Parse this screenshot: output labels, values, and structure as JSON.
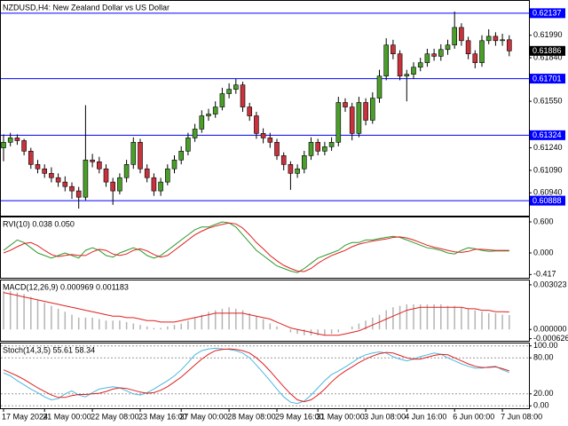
{
  "chart_data": [
    {
      "type": "candlestick",
      "title": "NZDUSD,H4:  New Zealand Dollar vs US Dollar",
      "categories": [
        "17 May 2024",
        null,
        null,
        null,
        null,
        null,
        "21 May 00:00",
        null,
        null,
        null,
        null,
        null,
        null,
        "22 May 08:00",
        null,
        null,
        null,
        null,
        null,
        null,
        "23 May 16:00",
        null,
        null,
        null,
        null,
        null,
        "27 May 00:00",
        null,
        null,
        null,
        null,
        null,
        null,
        "28 May 08:00",
        null,
        null,
        null,
        null,
        null,
        null,
        "29 May 16:00",
        null,
        null,
        null,
        null,
        null,
        "31 May 00:00",
        null,
        null,
        null,
        null,
        null,
        null,
        "3 Jun 08:00",
        null,
        null,
        null,
        null,
        null,
        "4 Jun 16:00",
        null,
        null,
        null,
        null,
        null,
        null,
        "6 Jun 00:00",
        null,
        null,
        null,
        null,
        null,
        null,
        "7 Jun 08:00",
        null
      ],
      "open": [
        0.6124,
        0.61277,
        0.61306,
        0.61288,
        0.61218,
        0.61129,
        0.611,
        0.6107,
        0.61041,
        0.61012,
        0.60982,
        0.60953,
        0.60911,
        0.61159,
        0.61147,
        0.611,
        0.61012,
        0.60953,
        0.61041,
        0.61129,
        0.61277,
        0.611,
        0.61041,
        0.60953,
        0.61012,
        0.611,
        0.61159,
        0.61218,
        0.61306,
        0.61365,
        0.61453,
        0.61465,
        0.61512,
        0.61601,
        0.6163,
        0.61659,
        0.61512,
        0.61453,
        0.61336,
        0.61306,
        0.61277,
        0.61188,
        0.61129,
        0.6107,
        0.611,
        0.61188,
        0.61277,
        0.61218,
        0.61247,
        0.61277,
        0.61542,
        0.61512,
        0.61336,
        0.61542,
        0.61424,
        0.61571,
        0.61718,
        0.61925,
        0.61866,
        0.61718,
        0.6173,
        0.61777,
        0.61807,
        0.61866,
        0.6185,
        0.61895,
        0.61925,
        0.62042,
        0.61954,
        0.61866,
        0.61807,
        0.61954,
        0.61983,
        0.61954,
        0.6196
      ],
      "high": [
        0.6133,
        0.6134,
        0.6133,
        0.613,
        0.6124,
        0.6116,
        0.6113,
        0.6111,
        0.6107,
        0.6105,
        0.6101,
        0.6098,
        0.61524,
        0.612,
        0.6118,
        0.6113,
        0.6104,
        0.6107,
        0.6116,
        0.6131,
        0.613,
        0.6113,
        0.6107,
        0.6104,
        0.6113,
        0.6119,
        0.6125,
        0.6134,
        0.614,
        0.6149,
        0.615,
        0.6155,
        0.6164,
        0.6167,
        0.617,
        0.6168,
        0.6154,
        0.6148,
        0.6137,
        0.6134,
        0.613,
        0.6121,
        0.6115,
        0.6113,
        0.6122,
        0.6131,
        0.613,
        0.6128,
        0.6131,
        0.6158,
        0.6157,
        0.6154,
        0.6158,
        0.6157,
        0.6161,
        0.6176,
        0.6197,
        0.6196,
        0.6189,
        0.6176,
        0.6181,
        0.6184,
        0.619,
        0.619,
        0.6193,
        0.6196,
        0.62148,
        0.6207,
        0.6198,
        0.6189,
        0.6199,
        0.6203,
        0.6201,
        0.62,
        0.6199
      ],
      "low": [
        0.6115,
        0.6125,
        0.6126,
        0.6119,
        0.611,
        0.6107,
        0.6104,
        0.6101,
        0.6098,
        0.6095,
        0.609,
        0.60835,
        0.6089,
        0.6111,
        0.6107,
        0.6098,
        0.6086,
        0.6093,
        0.6101,
        0.611,
        0.6107,
        0.6101,
        0.6092,
        0.6092,
        0.6099,
        0.6107,
        0.6113,
        0.6119,
        0.6128,
        0.6134,
        0.6142,
        0.6144,
        0.6149,
        0.6157,
        0.616,
        0.6148,
        0.6142,
        0.613,
        0.6127,
        0.6124,
        0.6116,
        0.6109,
        0.6096,
        0.6104,
        0.6107,
        0.6116,
        0.6119,
        0.6119,
        0.6122,
        0.6125,
        0.6148,
        0.6129,
        0.6131,
        0.6139,
        0.614,
        0.6154,
        0.6169,
        0.6183,
        0.6169,
        0.6155,
        0.617,
        0.6175,
        0.6178,
        0.6182,
        0.6182,
        0.6186,
        0.619,
        0.6192,
        0.6183,
        0.6177,
        0.6178,
        0.6193,
        0.6192,
        0.6192,
        0.6185
      ],
      "close": [
        0.61277,
        0.61306,
        0.61288,
        0.61218,
        0.61129,
        0.611,
        0.6107,
        0.61041,
        0.61012,
        0.60982,
        0.60953,
        0.60911,
        0.61159,
        0.61147,
        0.611,
        0.61012,
        0.60953,
        0.61041,
        0.61129,
        0.61277,
        0.611,
        0.61041,
        0.60953,
        0.61012,
        0.611,
        0.61159,
        0.61218,
        0.61306,
        0.61365,
        0.61453,
        0.61465,
        0.61512,
        0.61601,
        0.6163,
        0.61659,
        0.61512,
        0.61453,
        0.61336,
        0.61306,
        0.61277,
        0.61188,
        0.61129,
        0.6107,
        0.611,
        0.61188,
        0.61277,
        0.61218,
        0.61247,
        0.61277,
        0.61542,
        0.61512,
        0.61336,
        0.61542,
        0.61424,
        0.61571,
        0.61718,
        0.61925,
        0.61866,
        0.61718,
        0.6173,
        0.61777,
        0.61807,
        0.61866,
        0.6185,
        0.61895,
        0.61925,
        0.62042,
        0.61954,
        0.61866,
        0.61807,
        0.61954,
        0.61983,
        0.61954,
        0.6196,
        0.61886
      ],
      "up_color": "#4a9e2a",
      "down_color": "#c8323c",
      "ylim": [
        0.60788,
        0.62219
      ],
      "yticks": [
        {
          "value": 0.6199,
          "label": "0.61990"
        },
        {
          "value": 0.6184,
          "label": "0.61840"
        },
        {
          "value": 0.6155,
          "label": "0.61550"
        },
        {
          "value": 0.6124,
          "label": "0.61240"
        },
        {
          "value": 0.6109,
          "label": "0.61090"
        },
        {
          "value": 0.6094,
          "label": "0.60940"
        }
      ],
      "levels": [
        0.62137,
        0.61701,
        0.61324,
        0.60888
      ],
      "level_color": "#0000ff",
      "last_price": 0.61886
    },
    {
      "type": "line",
      "title": "RVI(10) 0.038 0.050",
      "series": [
        {
          "color": "#2e9a2e",
          "values": [
            0.05,
            0.15,
            0.25,
            0.2,
            0.1,
            0.0,
            -0.05,
            -0.1,
            -0.05,
            0.0,
            -0.05,
            -0.1,
            0.05,
            0.1,
            0.05,
            -0.05,
            -0.08,
            0.0,
            0.05,
            0.1,
            0.05,
            -0.05,
            -0.1,
            -0.05,
            0.05,
            0.15,
            0.25,
            0.35,
            0.45,
            0.5,
            0.5,
            0.55,
            0.6,
            0.58,
            0.5,
            0.35,
            0.2,
            0.05,
            -0.05,
            -0.15,
            -0.25,
            -0.3,
            -0.35,
            -0.38,
            -0.3,
            -0.2,
            -0.1,
            -0.05,
            0.0,
            0.05,
            0.15,
            0.2,
            0.2,
            0.25,
            0.25,
            0.28,
            0.3,
            0.32,
            0.3,
            0.25,
            0.2,
            0.15,
            0.1,
            0.08,
            0.05,
            0.0,
            -0.02,
            0.05,
            0.1,
            0.08,
            0.05,
            0.03,
            0.04,
            0.04,
            0.038
          ]
        },
        {
          "color": "#e02020",
          "values": [
            0.0,
            0.05,
            0.12,
            0.18,
            0.2,
            0.14,
            0.05,
            -0.03,
            -0.07,
            -0.05,
            -0.03,
            -0.05,
            -0.05,
            0.02,
            0.07,
            0.05,
            -0.02,
            -0.05,
            -0.02,
            0.05,
            0.08,
            0.04,
            -0.03,
            -0.08,
            -0.05,
            0.05,
            0.15,
            0.25,
            0.35,
            0.42,
            0.48,
            0.52,
            0.55,
            0.58,
            0.56,
            0.48,
            0.35,
            0.2,
            0.08,
            -0.05,
            -0.15,
            -0.24,
            -0.3,
            -0.35,
            -0.36,
            -0.3,
            -0.2,
            -0.12,
            -0.05,
            0.0,
            0.05,
            0.12,
            0.17,
            0.2,
            0.23,
            0.25,
            0.27,
            0.3,
            0.31,
            0.29,
            0.25,
            0.2,
            0.15,
            0.11,
            0.08,
            0.05,
            0.02,
            0.01,
            0.03,
            0.07,
            0.07,
            0.06,
            0.05,
            0.05,
            0.05
          ]
        }
      ],
      "ylim": [
        -0.48,
        0.686
      ],
      "yticks": [
        {
          "value": 0.6,
          "label": "0.600"
        },
        {
          "value": 0,
          "label": "0.000"
        },
        -0.417
      ]
    },
    {
      "type": "macd",
      "title": "MACD(12,26,9) 0.000969 0.001183",
      "histogram": {
        "color": "#b4b4b4",
        "values": [
          0.0026,
          0.0026,
          0.0025,
          0.0024,
          0.0022,
          0.002,
          0.0018,
          0.0016,
          0.0014,
          0.0012,
          0.001,
          0.0008,
          0.0008,
          0.0008,
          0.0007,
          0.0006,
          0.0006,
          0.0006,
          0.0005,
          0.0004,
          0.0003,
          0.0002,
          0.0001,
          0.0001,
          0.0002,
          0.0003,
          0.0004,
          0.0006,
          0.0008,
          0.001,
          0.0012,
          0.0013,
          0.0014,
          0.0015,
          0.0014,
          0.0013,
          0.0011,
          0.0009,
          0.0007,
          0.0004,
          0.0002,
          0.0,
          -0.0002,
          -0.0003,
          -0.0004,
          -0.0004,
          -0.0004,
          -0.0004,
          -0.0003,
          -0.0002,
          0.0,
          0.0002,
          0.0004,
          0.0006,
          0.0008,
          0.001,
          0.0013,
          0.0015,
          0.0016,
          0.0017,
          0.0017,
          0.0017,
          0.0017,
          0.0017,
          0.0017,
          0.0016,
          0.0016,
          0.0015,
          0.0014,
          0.0013,
          0.0012,
          0.0011,
          0.0011,
          0.001,
          0.000969
        ]
      },
      "signal": {
        "color": "#e02020",
        "values": [
          0.0025,
          0.0024,
          0.0023,
          0.0022,
          0.0021,
          0.002,
          0.0019,
          0.0018,
          0.0017,
          0.0016,
          0.0015,
          0.0014,
          0.0013,
          0.0012,
          0.0011,
          0.001,
          0.0009,
          0.0009,
          0.0008,
          0.0008,
          0.0007,
          0.0006,
          0.0006,
          0.0005,
          0.0005,
          0.0005,
          0.0006,
          0.0007,
          0.0008,
          0.0009,
          0.001,
          0.0011,
          0.0011,
          0.0011,
          0.0011,
          0.0011,
          0.001,
          0.0009,
          0.0008,
          0.0007,
          0.0005,
          0.0003,
          0.0001,
          0.0,
          -0.0001,
          -0.0002,
          -0.0003,
          -0.0004,
          -0.0004,
          -0.0004,
          -0.0003,
          -0.0002,
          -0.0001,
          0.0001,
          0.0003,
          0.0005,
          0.0007,
          0.0009,
          0.0011,
          0.0013,
          0.0014,
          0.0015,
          0.0015,
          0.0015,
          0.0015,
          0.0015,
          0.0015,
          0.0015,
          0.0014,
          0.0014,
          0.0013,
          0.0013,
          0.0012,
          0.0012,
          0.001183
        ]
      },
      "ylim": [
        -0.000771,
        0.003319
      ],
      "yticks": [
        0.003023,
        {
          "value": 0,
          "label": "0.000000"
        },
        -0.000626
      ]
    },
    {
      "type": "line",
      "title": "Stoch(14,3,5) 55.61 58.34",
      "series": [
        {
          "color": "#4ab8e0",
          "values": [
            55,
            50,
            42,
            35,
            28,
            22,
            15,
            10,
            12,
            20,
            25,
            18,
            15,
            22,
            28,
            30,
            32,
            30,
            25,
            20,
            18,
            22,
            28,
            35,
            42,
            50,
            60,
            72,
            85,
            92,
            95,
            96,
            95,
            94,
            92,
            88,
            80,
            68,
            55,
            42,
            28,
            15,
            6,
            4,
            8,
            18,
            30,
            42,
            52,
            58,
            65,
            72,
            80,
            85,
            88,
            90,
            88,
            82,
            78,
            75,
            78,
            82,
            85,
            88,
            86,
            80,
            75,
            70,
            66,
            63,
            63,
            65,
            66,
            60,
            55.61
          ]
        },
        {
          "color": "#e02020",
          "values": [
            60,
            55,
            50,
            44,
            37,
            30,
            24,
            18,
            14,
            14,
            17,
            19,
            19,
            20,
            21,
            24,
            28,
            30,
            29,
            26,
            23,
            21,
            22,
            26,
            32,
            40,
            48,
            58,
            68,
            78,
            86,
            92,
            94,
            95,
            94,
            92,
            88,
            80,
            70,
            58,
            45,
            32,
            20,
            10,
            7,
            10,
            18,
            28,
            40,
            50,
            58,
            65,
            72,
            78,
            83,
            87,
            89,
            88,
            84,
            80,
            78,
            78,
            81,
            84,
            86,
            85,
            80,
            75,
            70,
            66,
            64,
            64,
            65,
            62,
            58.34
          ]
        }
      ],
      "ylim": [
        -4,
        104
      ],
      "yticks": [
        {
          "value": 100,
          "label": "100.00"
        },
        {
          "value": 80,
          "label": "80.00"
        },
        {
          "value": 20,
          "label": "20.00"
        },
        {
          "value": 0,
          "label": "0.00"
        }
      ],
      "grid": true
    }
  ]
}
